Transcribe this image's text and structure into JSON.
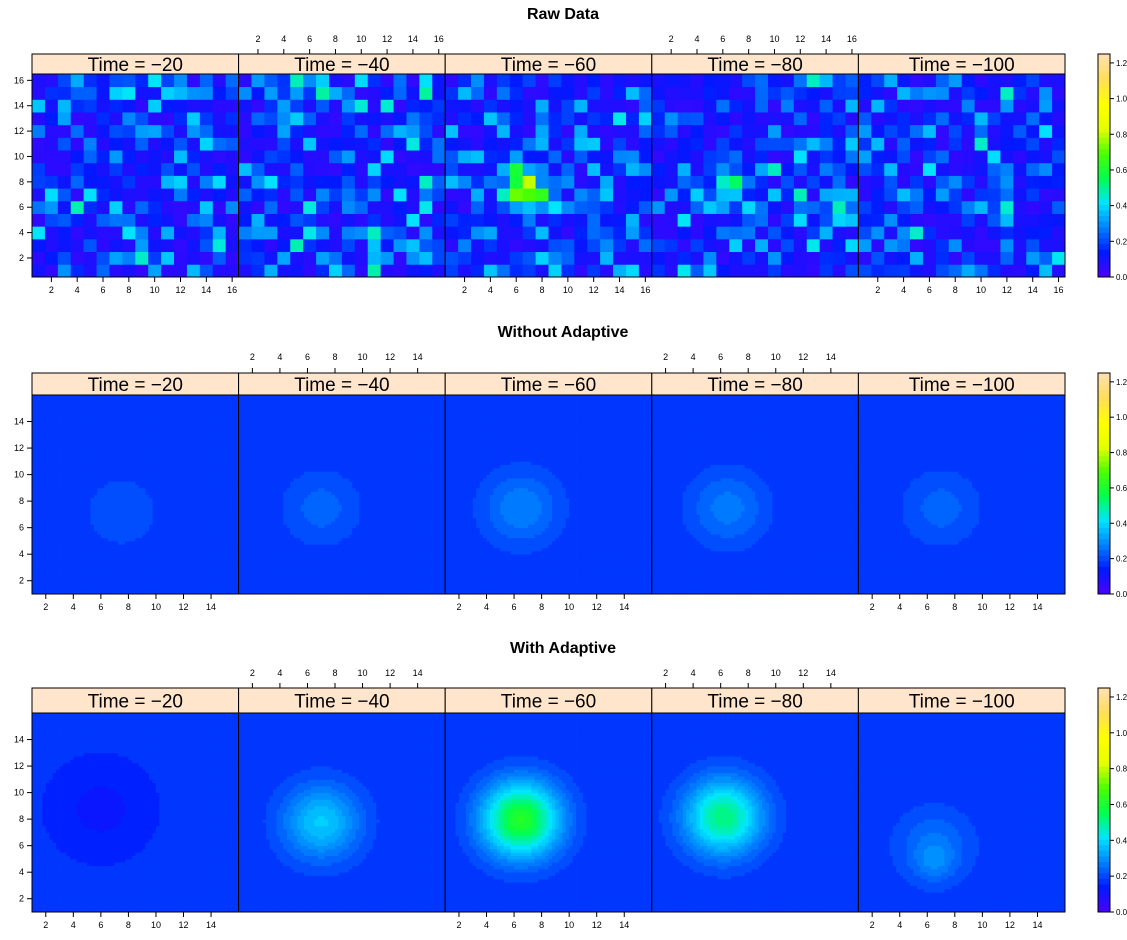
{
  "colors": {
    "strip": "#ffe5cc",
    "scale": [
      "#4c00ff",
      "#0019ff",
      "#0080ff",
      "#00e5ff",
      "#00ff4d",
      "#4dff00",
      "#e6ff00",
      "#ffff00",
      "#ffde59",
      "#ffe0b3"
    ]
  },
  "chart_data": [
    {
      "type": "heatmap",
      "title": "Raw Data",
      "panels": [
        "Time = −20",
        "Time = −40",
        "Time = −60",
        "Time = −80",
        "Time = −100"
      ],
      "grid": 16,
      "axis_ticks": [
        "2",
        "4",
        "6",
        "8",
        "10",
        "12",
        "14",
        "16"
      ],
      "tick_values": [
        2,
        4,
        6,
        8,
        10,
        12,
        14,
        16
      ],
      "xlim": [
        0.5,
        16.5
      ],
      "ylim": [
        0.5,
        16.5
      ],
      "peak": [
        [
          0,
          0,
          0
        ],
        [
          0.05,
          0,
          0
        ],
        [
          0.55,
          6.5,
          7.5
        ],
        [
          0.25,
          6.5,
          7.5
        ],
        [
          0,
          0,
          0
        ]
      ],
      "colorbar": {
        "ticks": [
          "0.0",
          "0.2",
          "0.4",
          "0.6",
          "0.8",
          "1.0",
          "1.2"
        ],
        "values": [
          0,
          0.2,
          0.4,
          0.6,
          0.8,
          1.0,
          1.2
        ],
        "range": [
          0,
          1.25
        ]
      }
    },
    {
      "type": "heatmap",
      "title": "Without Adaptive",
      "panels": [
        "Time = −20",
        "Time = −40",
        "Time = −60",
        "Time = −80",
        "Time = −100"
      ],
      "grid": 16,
      "axis_ticks": [
        "2",
        "4",
        "6",
        "8",
        "10",
        "12",
        "14"
      ],
      "tick_values": [
        2,
        4,
        6,
        8,
        10,
        12,
        14
      ],
      "xlim": [
        1,
        16
      ],
      "ylim": [
        1,
        16
      ],
      "peak": [
        [
          0.22,
          7.5,
          7.2
        ],
        [
          0.24,
          7.0,
          7.5
        ],
        [
          0.28,
          6.5,
          7.5
        ],
        [
          0.27,
          6.5,
          7.5
        ],
        [
          0.24,
          7.0,
          7.5
        ]
      ],
      "colorbar": {
        "ticks": [
          "0.0",
          "0.2",
          "0.4",
          "0.6",
          "0.8",
          "1.0",
          "1.2"
        ],
        "values": [
          0,
          0.2,
          0.4,
          0.6,
          0.8,
          1.0,
          1.2
        ],
        "range": [
          0,
          1.25
        ]
      }
    },
    {
      "type": "heatmap",
      "title": "With Adaptive",
      "panels": [
        "Time = −20",
        "Time = −40",
        "Time = −60",
        "Time = −80",
        "Time = −100"
      ],
      "grid": 16,
      "axis_ticks": [
        "2",
        "4",
        "6",
        "8",
        "10",
        "12",
        "14"
      ],
      "tick_values": [
        2,
        4,
        6,
        8,
        10,
        12,
        14
      ],
      "xlim": [
        1,
        16
      ],
      "ylim": [
        1,
        16
      ],
      "peak": [
        [
          0.12,
          6.0,
          8.8
        ],
        [
          0.38,
          7.0,
          7.8
        ],
        [
          0.62,
          6.5,
          8.0
        ],
        [
          0.52,
          6.2,
          8.2
        ],
        [
          0.26,
          6.5,
          6.0
        ]
      ],
      "colorbar": {
        "ticks": [
          "0.0",
          "0.2",
          "0.4",
          "0.6",
          "0.8",
          "1.0",
          "1.2"
        ],
        "values": [
          0,
          0.2,
          0.4,
          0.6,
          0.8,
          1.0,
          1.2
        ],
        "range": [
          0,
          1.25
        ]
      }
    }
  ]
}
